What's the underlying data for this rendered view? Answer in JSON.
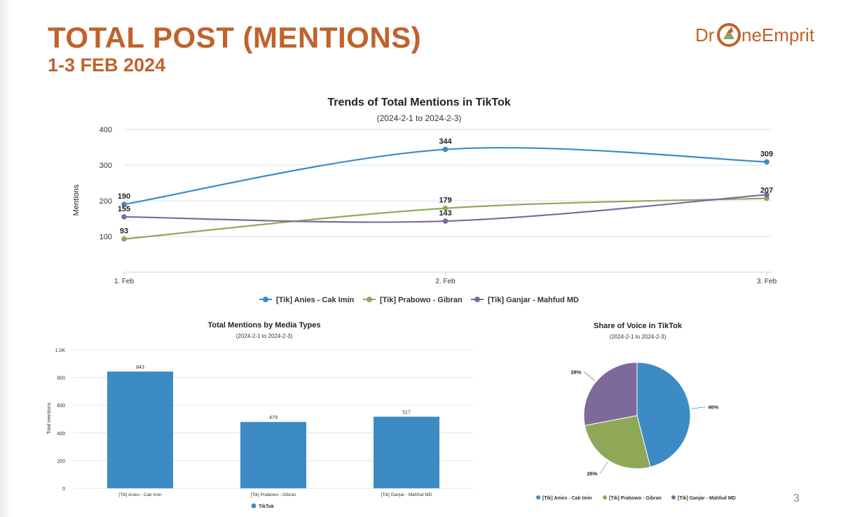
{
  "slide": {
    "title": "TOTAL POST (MENTIONS)",
    "subtitle": "1-3 FEB 2024",
    "page_number": "3",
    "logo": {
      "text_left": "Dr",
      "text_right": "neEmprit",
      "color": "#c0622b"
    }
  },
  "colors": {
    "anies": "#3d8bc4",
    "prabowo": "#8fa858",
    "ganjar": "#7d6a9b",
    "title": "#c0622b"
  },
  "chart_data": [
    {
      "type": "line",
      "title": "Trends of Total Mentions in TikTok",
      "subtitle": "(2024-2-1 to 2024-2-3)",
      "ylabel": "Mentions",
      "xlabel": "",
      "categories": [
        "1. Feb",
        "2. Feb",
        "3. Feb"
      ],
      "yticks": [
        100,
        200,
        300,
        400
      ],
      "ylim": [
        0,
        400
      ],
      "grid": true,
      "legend": "bottom",
      "series": [
        {
          "name": "[Tik] Anies - Cak Imin",
          "values": [
            190,
            344,
            309
          ],
          "color": "#3d8bc4"
        },
        {
          "name": "[Tik] Prabowo - Gibran",
          "values": [
            93,
            179,
            207
          ],
          "color": "#8fa858"
        },
        {
          "name": "[Tik] Ganjar - Mahfud MD",
          "values": [
            155,
            143,
            217
          ],
          "color": "#7d6a9b"
        }
      ],
      "data_labels": [
        {
          "text": "190",
          "series": 0,
          "index": 0
        },
        {
          "text": "344",
          "series": 0,
          "index": 1
        },
        {
          "text": "309",
          "series": 0,
          "index": 2
        },
        {
          "text": "93",
          "series": 1,
          "index": 0
        },
        {
          "text": "179",
          "series": 1,
          "index": 1
        },
        {
          "text": "155",
          "series": 2,
          "index": 0
        },
        {
          "text": "143",
          "series": 2,
          "index": 1
        },
        {
          "text": "207",
          "series": 1,
          "index": 2
        }
      ]
    },
    {
      "type": "bar",
      "title": "Total Mentions by Media Types",
      "subtitle": "(2024-2-1 to 2024-2-3)",
      "ylabel": "Total mentions",
      "xlabel": "",
      "categories": [
        "[Tik] Anies - Cak Imin",
        "[Tik] Prabowo - Gibran",
        "[Tik] Ganjar - Mahfud MD"
      ],
      "values": [
        843,
        479,
        517
      ],
      "yticks": [
        0,
        200,
        400,
        600,
        800,
        1000
      ],
      "ytick_labels": [
        "0",
        "200",
        "400",
        "600",
        "800",
        "1.0K"
      ],
      "ylim": [
        0,
        1000
      ],
      "grid": true,
      "legend": "bottom",
      "series": [
        {
          "name": "TikTok",
          "color": "#3d8bc4"
        }
      ]
    },
    {
      "type": "pie",
      "title": "Share of Voice in TikTok",
      "subtitle": "(2024-2-1 to 2024-2-3)",
      "legend": "bottom",
      "slices": [
        {
          "name": "[Tik] Anies - Cak Imin",
          "value": 46,
          "label": "46%",
          "color": "#3d8bc4"
        },
        {
          "name": "[Tik] Prabowo - Gibran",
          "value": 26,
          "label": "26%",
          "color": "#8fa858"
        },
        {
          "name": "[Tik] Ganjar - Mahfud MD",
          "value": 28,
          "label": "28%",
          "color": "#7d6a9b"
        }
      ]
    }
  ]
}
